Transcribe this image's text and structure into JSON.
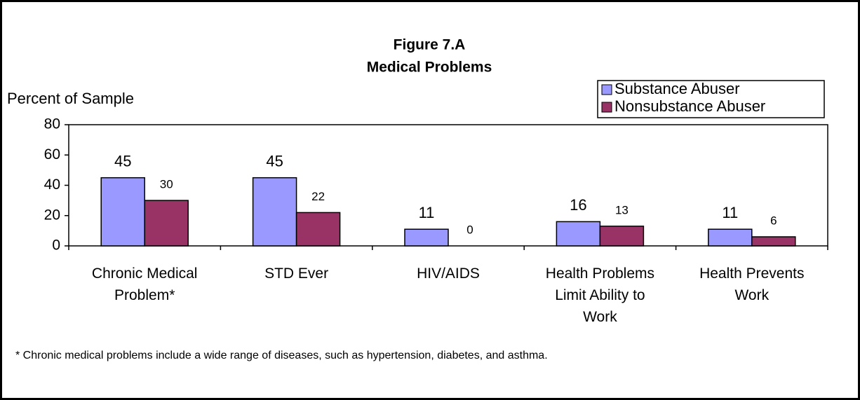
{
  "chart_data": {
    "type": "bar",
    "title": "Figure 7.A",
    "subtitle": "Medical Problems",
    "y_label": "Percent of Sample",
    "categories": [
      "Chronic Medical Problem*",
      "STD Ever",
      "HIV/AIDS",
      "Health Problems Limit Ability to Work",
      "Health Prevents Work"
    ],
    "series": [
      {
        "name": "Substance Abuser",
        "color": "#9999ff",
        "values": [
          45,
          45,
          11,
          16,
          11
        ]
      },
      {
        "name": "Nonsubstance Abuser",
        "color": "#993366",
        "values": [
          30,
          22,
          0,
          13,
          6
        ]
      }
    ],
    "ylim": [
      0,
      80
    ],
    "yticks": [
      0,
      20,
      40,
      60,
      80
    ],
    "legend": "upper right",
    "note": "* Chronic medical problems include a wide range of diseases, such as hypertension, diabetes, and asthma."
  }
}
